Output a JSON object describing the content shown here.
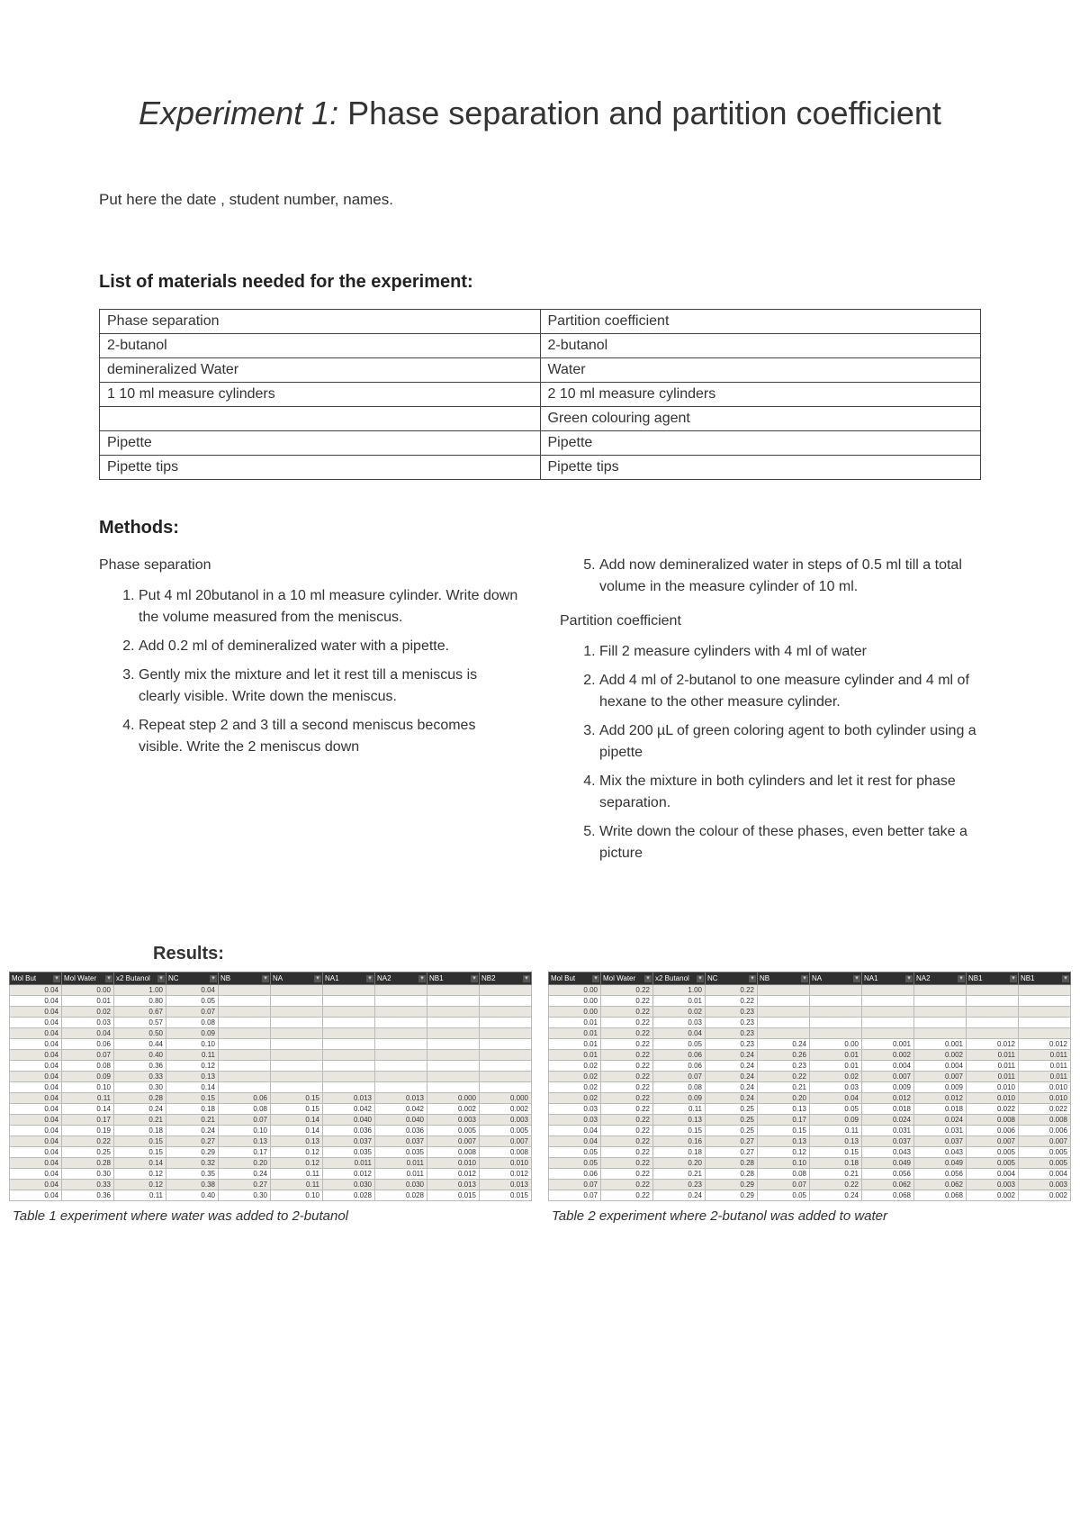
{
  "title_em": "Experiment 1:",
  "title_rest": " Phase separation and partition coefficient",
  "meta_line": "Put here the date , student number, names.",
  "materials_heading": "List of materials needed for the experiment:",
  "materials": {
    "rows": [
      [
        "Phase separation",
        "Partition coefficient"
      ],
      [
        "2-butanol",
        "2-butanol"
      ],
      [
        "demineralized Water",
        "Water"
      ],
      [
        "1 10 ml measure cylinders",
        "2 10 ml measure cylinders"
      ],
      [
        "",
        "Green colouring agent"
      ],
      [
        "Pipette",
        "Pipette"
      ],
      [
        "Pipette tips",
        "Pipette tips"
      ]
    ]
  },
  "methods_heading": "Methods:",
  "methods": {
    "phase_sep_label": "Phase separation",
    "phase_sep_steps": [
      "Put 4 ml 20butanol in a 10 ml measure cylinder. Write down the volume measured from the meniscus.",
      "Add 0.2 ml of demineralized water with a pipette.",
      "Gently mix the mixture and let it rest till a meniscus is clearly visible. Write down the meniscus.",
      "Repeat step 2 and 3 till a second meniscus becomes visible. Write the 2 meniscus down"
    ],
    "phase_sep_step5": "Add now demineralized water in steps of 0.5 ml till a total volume in the measure cylinder of 10 ml.",
    "pc_label": "Partition coefficient",
    "pc_steps": [
      "Fill 2 measure cylinders with 4 ml of water",
      "Add 4 ml of 2-butanol to one measure cylinder and 4 ml of hexane to the other measure cylinder.",
      "Add 200 µL of green coloring agent to both cylinder using a pipette",
      "Mix the mixture in both cylinders and let it rest for phase separation.",
      "Write down the colour of these phases, even better take a picture"
    ]
  },
  "results_heading": "Results:",
  "table1": {
    "headers": [
      "Mol But",
      "Mol Water",
      "x2 Butanol",
      "NC",
      "NB",
      "NA",
      "NA1",
      "NA2",
      "NB1",
      "NB2"
    ],
    "rows": [
      [
        "0.04",
        "0.00",
        "1.00",
        "0.04",
        "",
        "",
        "",
        "",
        "",
        ""
      ],
      [
        "0.04",
        "0.01",
        "0.80",
        "0.05",
        "",
        "",
        "",
        "",
        "",
        ""
      ],
      [
        "0.04",
        "0.02",
        "0.67",
        "0.07",
        "",
        "",
        "",
        "",
        "",
        ""
      ],
      [
        "0.04",
        "0.03",
        "0.57",
        "0.08",
        "",
        "",
        "",
        "",
        "",
        ""
      ],
      [
        "0.04",
        "0.04",
        "0.50",
        "0.09",
        "",
        "",
        "",
        "",
        "",
        ""
      ],
      [
        "0.04",
        "0.06",
        "0.44",
        "0.10",
        "",
        "",
        "",
        "",
        "",
        ""
      ],
      [
        "0.04",
        "0.07",
        "0.40",
        "0.11",
        "",
        "",
        "",
        "",
        "",
        ""
      ],
      [
        "0.04",
        "0.08",
        "0.36",
        "0.12",
        "",
        "",
        "",
        "",
        "",
        ""
      ],
      [
        "0.04",
        "0.09",
        "0.33",
        "0.13",
        "",
        "",
        "",
        "",
        "",
        ""
      ],
      [
        "0.04",
        "0.10",
        "0.30",
        "0.14",
        "",
        "",
        "",
        "",
        "",
        ""
      ],
      [
        "0.04",
        "0.11",
        "0.28",
        "0.15",
        "0.06",
        "0.15",
        "0.013",
        "0.013",
        "0.000",
        "0.000"
      ],
      [
        "0.04",
        "0.14",
        "0.24",
        "0.18",
        "0.08",
        "0.15",
        "0.042",
        "0.042",
        "0.002",
        "0.002"
      ],
      [
        "0.04",
        "0.17",
        "0.21",
        "0.21",
        "0.07",
        "0.14",
        "0.040",
        "0.040",
        "0.003",
        "0.003"
      ],
      [
        "0.04",
        "0.19",
        "0.18",
        "0.24",
        "0.10",
        "0.14",
        "0.036",
        "0.036",
        "0.005",
        "0.005"
      ],
      [
        "0.04",
        "0.22",
        "0.15",
        "0.27",
        "0.13",
        "0.13",
        "0.037",
        "0.037",
        "0.007",
        "0.007"
      ],
      [
        "0.04",
        "0.25",
        "0.15",
        "0.29",
        "0.17",
        "0.12",
        "0.035",
        "0.035",
        "0.008",
        "0.008"
      ],
      [
        "0.04",
        "0.28",
        "0.14",
        "0.32",
        "0.20",
        "0.12",
        "0.011",
        "0.011",
        "0.010",
        "0.010"
      ],
      [
        "0.04",
        "0.30",
        "0.12",
        "0.35",
        "0.24",
        "0.11",
        "0.012",
        "0.011",
        "0.012",
        "0.012"
      ],
      [
        "0.04",
        "0.33",
        "0.12",
        "0.38",
        "0.27",
        "0.11",
        "0.030",
        "0.030",
        "0.013",
        "0.013"
      ],
      [
        "0.04",
        "0.36",
        "0.11",
        "0.40",
        "0.30",
        "0.10",
        "0.028",
        "0.028",
        "0.015",
        "0.015"
      ]
    ],
    "caption": "Table 1 experiment where water was added to 2-butanol"
  },
  "table2": {
    "headers": [
      "Mol But",
      "Mol Water",
      "x2 Butanol",
      "NC",
      "NB",
      "NA",
      "NA1",
      "NA2",
      "NB1",
      "NB1"
    ],
    "rows": [
      [
        "0.00",
        "0.22",
        "1.00",
        "0.22",
        "",
        "",
        "",
        "",
        "",
        ""
      ],
      [
        "0.00",
        "0.22",
        "0.01",
        "0.22",
        "",
        "",
        "",
        "",
        "",
        ""
      ],
      [
        "0.00",
        "0.22",
        "0.02",
        "0.23",
        "",
        "",
        "",
        "",
        "",
        ""
      ],
      [
        "0.01",
        "0.22",
        "0.03",
        "0.23",
        "",
        "",
        "",
        "",
        "",
        ""
      ],
      [
        "0.01",
        "0.22",
        "0.04",
        "0.23",
        "",
        "",
        "",
        "",
        "",
        ""
      ],
      [
        "0.01",
        "0.22",
        "0.05",
        "0.23",
        "0.24",
        "0.00",
        "0.001",
        "0.001",
        "0.012",
        "0.012"
      ],
      [
        "0.01",
        "0.22",
        "0.06",
        "0.24",
        "0.26",
        "0.01",
        "0.002",
        "0.002",
        "0.011",
        "0.011"
      ],
      [
        "0.02",
        "0.22",
        "0.06",
        "0.24",
        "0.23",
        "0.01",
        "0.004",
        "0.004",
        "0.011",
        "0.011"
      ],
      [
        "0.02",
        "0.22",
        "0.07",
        "0.24",
        "0.22",
        "0.02",
        "0.007",
        "0.007",
        "0.011",
        "0.011"
      ],
      [
        "0.02",
        "0.22",
        "0.08",
        "0.24",
        "0.21",
        "0.03",
        "0.009",
        "0.009",
        "0.010",
        "0.010"
      ],
      [
        "0.02",
        "0.22",
        "0.09",
        "0.24",
        "0.20",
        "0.04",
        "0.012",
        "0.012",
        "0.010",
        "0.010"
      ],
      [
        "0.03",
        "0.22",
        "0.11",
        "0.25",
        "0.13",
        "0.05",
        "0.018",
        "0.018",
        "0.022",
        "0.022"
      ],
      [
        "0.03",
        "0.22",
        "0.13",
        "0.25",
        "0.17",
        "0.09",
        "0.024",
        "0.024",
        "0.008",
        "0.008"
      ],
      [
        "0.04",
        "0.22",
        "0.15",
        "0.25",
        "0.15",
        "0.11",
        "0.031",
        "0.031",
        "0.006",
        "0.006"
      ],
      [
        "0.04",
        "0.22",
        "0.16",
        "0.27",
        "0.13",
        "0.13",
        "0.037",
        "0.037",
        "0.007",
        "0.007"
      ],
      [
        "0.05",
        "0.22",
        "0.18",
        "0.27",
        "0.12",
        "0.15",
        "0.043",
        "0.043",
        "0.005",
        "0.005"
      ],
      [
        "0.05",
        "0.22",
        "0.20",
        "0.28",
        "0.10",
        "0.18",
        "0.049",
        "0.049",
        "0.005",
        "0.005"
      ],
      [
        "0.06",
        "0.22",
        "0.21",
        "0.28",
        "0.08",
        "0.21",
        "0.056",
        "0.056",
        "0.004",
        "0.004"
      ],
      [
        "0.07",
        "0.22",
        "0.23",
        "0.29",
        "0.07",
        "0.22",
        "0.062",
        "0.062",
        "0.003",
        "0.003"
      ],
      [
        "0.07",
        "0.22",
        "0.24",
        "0.29",
        "0.05",
        "0.24",
        "0.068",
        "0.068",
        "0.002",
        "0.002"
      ]
    ],
    "caption": "Table 2 experiment where 2-butanol was added to water"
  }
}
